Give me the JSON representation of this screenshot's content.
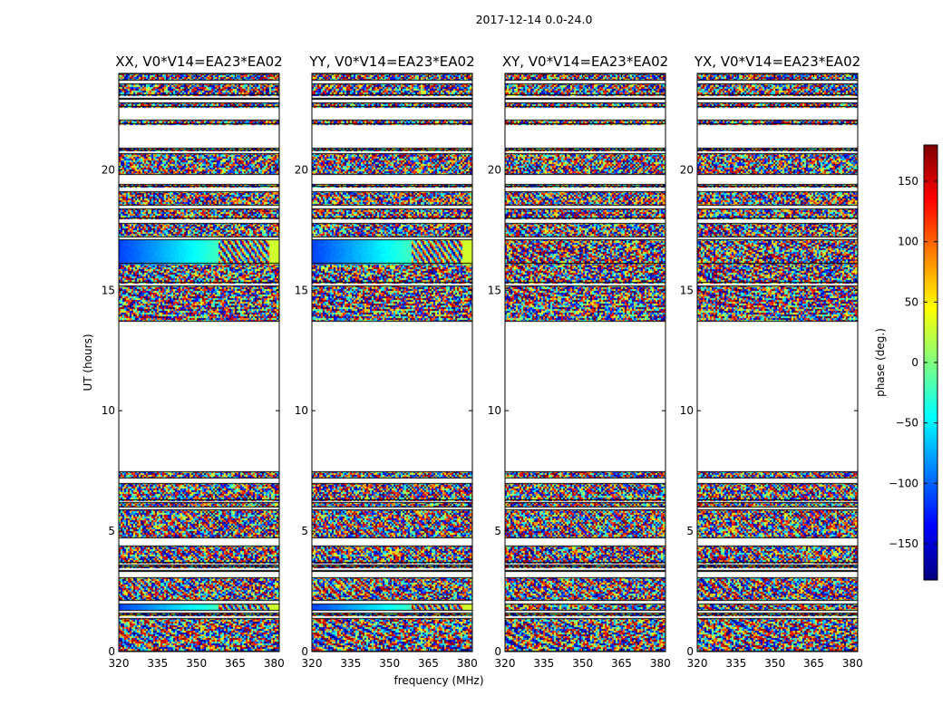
{
  "figure": {
    "suptitle": "2017-12-14 0.0-24.0"
  },
  "colors": {
    "background": "#ffffff",
    "axes": "#000000",
    "blank": "#ffffff",
    "colormap": [
      "#00007f",
      "#0000ff",
      "#007fff",
      "#00ffff",
      "#7fff7f",
      "#ffff00",
      "#ff7f00",
      "#ff0000",
      "#7f0000"
    ]
  },
  "chart_data": {
    "type": "heatmap",
    "title": "2017-12-14 0.0-24.0",
    "xlabel": "frequency (MHz)",
    "ylabel": "UT (hours)",
    "xlim": [
      320,
      382
    ],
    "ylim": [
      0,
      24
    ],
    "xticks": [
      320,
      335,
      350,
      365,
      380
    ],
    "yticks": [
      0,
      5,
      10,
      15,
      20
    ],
    "panels": [
      {
        "title": "XX, V0*V14=EA23*EA02",
        "coherent": [
          [
            16.1,
            17.1
          ],
          [
            1.7,
            2.0
          ]
        ]
      },
      {
        "title": "YY, V0*V14=EA23*EA02",
        "coherent": [
          [
            16.1,
            17.1
          ],
          [
            1.7,
            2.0
          ]
        ]
      },
      {
        "title": "XY, V0*V14=EA23*EA02",
        "coherent": []
      },
      {
        "title": "YX, V0*V14=EA23*EA02",
        "coherent": []
      }
    ],
    "data_rows_ut": [
      [
        0.0,
        1.4
      ],
      [
        1.5,
        1.6
      ],
      [
        1.7,
        2.0
      ],
      [
        2.1,
        3.1
      ],
      [
        3.3,
        3.4
      ],
      [
        3.5,
        3.6
      ],
      [
        3.7,
        4.4
      ],
      [
        4.7,
        5.9
      ],
      [
        6.0,
        6.2
      ],
      [
        6.3,
        7.0
      ],
      [
        7.2,
        7.5
      ],
      [
        13.7,
        15.2
      ],
      [
        15.3,
        16.1
      ],
      [
        16.1,
        17.1
      ],
      [
        17.2,
        17.8
      ],
      [
        18.0,
        18.4
      ],
      [
        18.5,
        19.1
      ],
      [
        19.3,
        19.4
      ],
      [
        19.8,
        20.7
      ],
      [
        20.8,
        20.9
      ],
      [
        21.9,
        22.1
      ],
      [
        22.6,
        22.8
      ],
      [
        22.9,
        23.0
      ],
      [
        23.1,
        23.6
      ],
      [
        23.7,
        24.0
      ]
    ],
    "colorbar": {
      "label": "phase (deg.)",
      "range": [
        -180,
        180
      ],
      "ticks": [
        150,
        100,
        50,
        0,
        -50,
        -100,
        -150
      ],
      "tick_labels": [
        "150",
        "100",
        "50",
        "0",
        "−50",
        "−100",
        "−150"
      ]
    }
  }
}
